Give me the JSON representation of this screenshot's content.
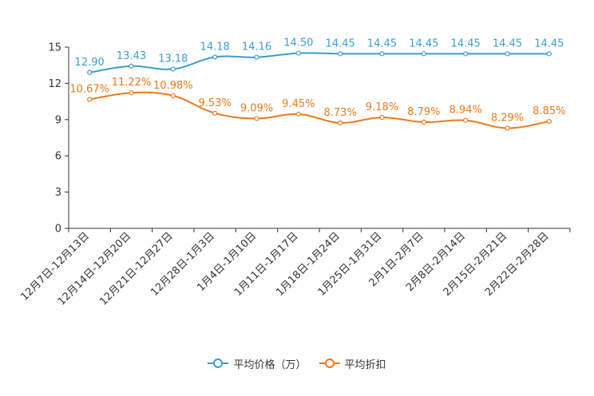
{
  "chart_data": {
    "type": "line",
    "categories": [
      "12月7日-12月13日",
      "12月14日-12月20日",
      "12月21日-12月27日",
      "12月28日-1月3日",
      "1月4日-1月10日",
      "1月11日-1月17日",
      "1月18日-1月24日",
      "1月25日-1月31日",
      "2月1日-2月7日",
      "2月8日-2月14日",
      "2月15日-2月21日",
      "2月22日-2月28日"
    ],
    "series": [
      {
        "name": "平均价格（万）",
        "color": "#3c9dd0",
        "values": [
          12.9,
          13.43,
          13.18,
          14.18,
          14.16,
          14.5,
          14.45,
          14.45,
          14.45,
          14.45,
          14.45,
          14.45
        ],
        "labels": [
          "12.90",
          "13.43",
          "13.18",
          "14.18",
          "14.16",
          "14.50",
          "14.45",
          "14.45",
          "14.45",
          "14.45",
          "14.45",
          "14.45"
        ]
      },
      {
        "name": "平均折扣",
        "color": "#f07818",
        "values": [
          10.67,
          11.22,
          10.98,
          9.53,
          9.09,
          9.45,
          8.73,
          9.18,
          8.79,
          8.94,
          8.29,
          8.85
        ],
        "labels": [
          "10.67%",
          "11.22%",
          "10.98%",
          "9.53%",
          "9.09%",
          "9.45%",
          "8.73%",
          "9.18%",
          "8.79%",
          "8.94%",
          "8.29%",
          "8.85%"
        ]
      }
    ],
    "yticks": [
      "0",
      "3",
      "6",
      "9",
      "12",
      "15"
    ],
    "ylim": [
      0,
      15
    ],
    "title": "",
    "xlabel": "",
    "ylabel": "",
    "grid": false,
    "legend_position": "bottom-center"
  }
}
